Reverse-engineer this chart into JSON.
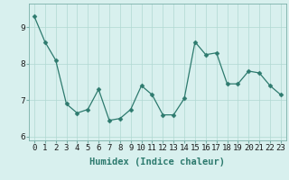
{
  "x": [
    0,
    1,
    2,
    3,
    4,
    5,
    6,
    7,
    8,
    9,
    10,
    11,
    12,
    13,
    14,
    15,
    16,
    17,
    18,
    19,
    20,
    21,
    22,
    23
  ],
  "y": [
    9.3,
    8.6,
    8.1,
    6.9,
    6.65,
    6.75,
    7.3,
    6.45,
    6.5,
    6.75,
    7.4,
    7.15,
    6.6,
    6.6,
    7.05,
    8.6,
    8.25,
    8.3,
    7.45,
    7.45,
    7.8,
    7.75,
    7.4,
    7.15
  ],
  "line_color": "#2d7a6e",
  "marker": "D",
  "marker_size": 2.5,
  "bg_color": "#d8f0ee",
  "grid_color": "#b0d8d2",
  "xlabel": "Humidex (Indice chaleur)",
  "xlim": [
    -0.5,
    23.5
  ],
  "ylim": [
    5.9,
    9.65
  ],
  "yticks": [
    6,
    7,
    8,
    9
  ],
  "xtick_labels": [
    "0",
    "1",
    "2",
    "3",
    "4",
    "5",
    "6",
    "7",
    "8",
    "9",
    "10",
    "11",
    "12",
    "13",
    "14",
    "15",
    "16",
    "17",
    "18",
    "19",
    "20",
    "21",
    "22",
    "23"
  ],
  "xlabel_fontsize": 7.5,
  "tick_fontsize": 6.5
}
